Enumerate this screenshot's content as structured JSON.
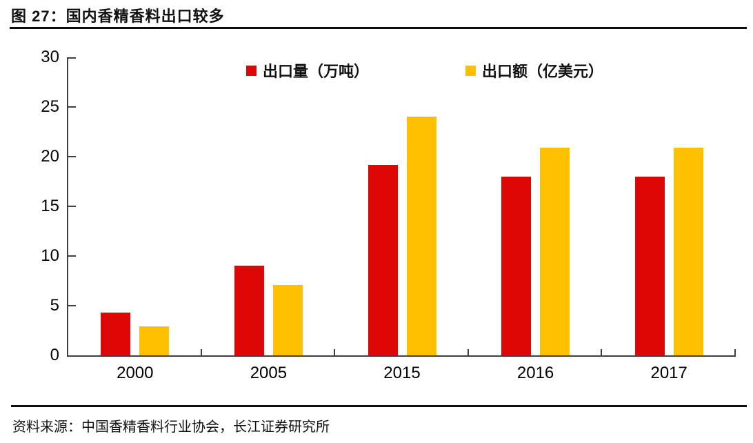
{
  "header": {
    "title": "图 27：国内香精香料出口较多"
  },
  "footer": {
    "source": "资料来源：中国香精香料行业协会，长江证券研究所"
  },
  "colors": {
    "series_red": "#DD0806",
    "series_gold": "#FFC000",
    "axis": "#3F3F3F",
    "rule": "#0D0D0D"
  },
  "chart_data": {
    "type": "bar",
    "title": "国内香精香料出口较多",
    "categories": [
      "2000",
      "2005",
      "2015",
      "2016",
      "2017"
    ],
    "series": [
      {
        "name": "出口量（万吨）",
        "color": "#DD0806",
        "values": [
          4.3,
          9.0,
          19.2,
          18.0,
          18.0
        ]
      },
      {
        "name": "出口额（亿美元）",
        "color": "#FFC000",
        "values": [
          2.9,
          7.1,
          24.0,
          20.9,
          20.9
        ]
      }
    ],
    "xlabel": "",
    "ylabel": "",
    "ylim": [
      0,
      30
    ],
    "yticks": [
      0,
      5,
      10,
      15,
      20,
      25,
      30
    ],
    "grid": false,
    "legend_position": "top",
    "tick_style": "inside"
  }
}
